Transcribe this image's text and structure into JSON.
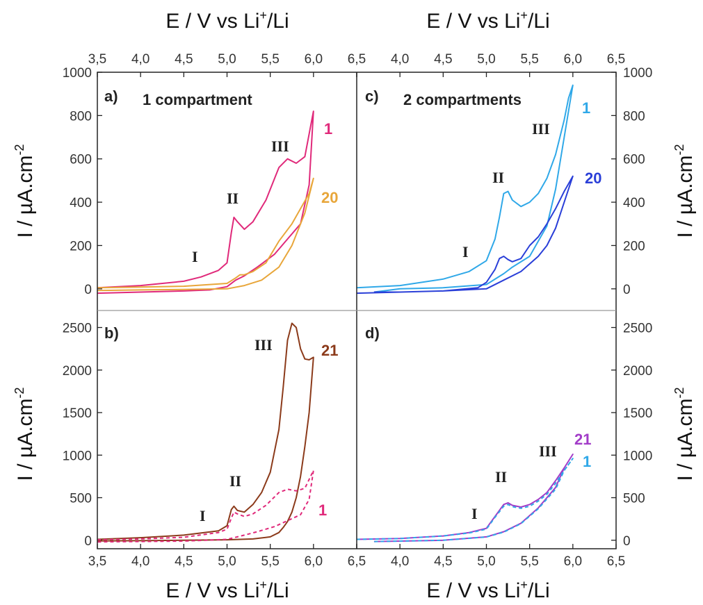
{
  "figure": {
    "x_axis_title_prefix": "E / V vs Li",
    "x_axis_title_sup": "+",
    "x_axis_title_suffix": "/Li",
    "y_axis_title_prefix": "I / µA.cm",
    "y_axis_title_sup": "-2",
    "x_tick_labels": [
      "3,5",
      "4,0",
      "4,5",
      "5,0",
      "5,5",
      "6,0",
      "6,5"
    ],
    "y_tick_labels_top": [
      "0",
      "200",
      "400",
      "600",
      "800",
      "1000"
    ],
    "y_tick_labels_bottom": [
      "0",
      "500",
      "1000",
      "1500",
      "2000",
      "2500"
    ]
  },
  "chart_data": [
    {
      "id": "a",
      "panel_label": "a)",
      "condition": "1 compartment",
      "type": "line",
      "xlabel": "E / V vs Li+/Li",
      "ylabel": "I / µA.cm-2",
      "xlim": [
        3.5,
        6.5
      ],
      "ylim": [
        -100,
        1000
      ],
      "series": [
        {
          "cycle_label": "1",
          "color": "#E0297A",
          "dash": "solid",
          "x": [
            3.5,
            4.0,
            4.5,
            4.7,
            4.9,
            5.0,
            5.05,
            5.08,
            5.12,
            5.2,
            5.3,
            5.45,
            5.6,
            5.7,
            5.8,
            5.9,
            6.0,
            5.95,
            5.85,
            5.7,
            5.55,
            5.35,
            5.2,
            5.1,
            5.0,
            4.8,
            4.5,
            4.0,
            3.5
          ],
          "y": [
            5,
            15,
            35,
            55,
            85,
            120,
            260,
            330,
            310,
            275,
            310,
            410,
            560,
            600,
            580,
            610,
            820,
            480,
            300,
            230,
            160,
            100,
            60,
            40,
            10,
            -5,
            -10,
            -15,
            -20
          ]
        },
        {
          "cycle_label": "20",
          "color": "#E8A63A",
          "dash": "solid",
          "x": [
            3.5,
            4.0,
            4.5,
            5.0,
            5.1,
            5.15,
            5.2,
            5.3,
            5.45,
            5.6,
            5.75,
            5.85,
            5.95,
            6.0,
            5.9,
            5.75,
            5.6,
            5.4,
            5.2,
            5.0,
            4.5,
            4.0,
            3.5
          ],
          "y": [
            5,
            8,
            12,
            25,
            50,
            65,
            65,
            80,
            120,
            220,
            300,
            370,
            440,
            510,
            350,
            200,
            100,
            40,
            15,
            0,
            -3,
            -5,
            -8
          ]
        }
      ],
      "annotations": [
        "I",
        "II",
        "III"
      ]
    },
    {
      "id": "b",
      "panel_label": "b)",
      "condition": "",
      "type": "line",
      "xlabel": "E / V vs Li+/Li",
      "ylabel": "I / µA.cm-2",
      "xlim": [
        3.5,
        6.5
      ],
      "ylim": [
        -100,
        2700
      ],
      "series": [
        {
          "cycle_label": "21",
          "color": "#8B3A1A",
          "dash": "solid",
          "x": [
            3.5,
            4.0,
            4.5,
            4.9,
            5.0,
            5.05,
            5.08,
            5.12,
            5.2,
            5.3,
            5.4,
            5.5,
            5.6,
            5.65,
            5.7,
            5.75,
            5.8,
            5.85,
            5.9,
            5.95,
            6.0,
            5.95,
            5.9,
            5.85,
            5.8,
            5.75,
            5.7,
            5.65,
            5.6,
            5.5,
            5.3,
            5.0,
            4.5,
            4.0,
            3.5
          ],
          "y": [
            10,
            30,
            60,
            110,
            170,
            360,
            400,
            350,
            330,
            420,
            560,
            800,
            1300,
            1800,
            2350,
            2550,
            2500,
            2250,
            2130,
            2120,
            2150,
            1500,
            1100,
            750,
            500,
            330,
            220,
            150,
            90,
            40,
            15,
            5,
            0,
            -5,
            -8
          ]
        },
        {
          "cycle_label": "1",
          "color": "#E0297A",
          "dash": "dashed",
          "x": [
            3.5,
            4.0,
            4.5,
            4.9,
            5.0,
            5.05,
            5.08,
            5.12,
            5.2,
            5.3,
            5.45,
            5.6,
            5.7,
            5.8,
            5.9,
            6.0,
            5.95,
            5.85,
            5.7,
            5.55,
            5.35,
            5.2,
            5.0,
            4.5,
            4.0,
            3.5
          ],
          "y": [
            5,
            15,
            35,
            90,
            130,
            260,
            330,
            310,
            280,
            310,
            410,
            560,
            600,
            580,
            610,
            820,
            480,
            300,
            230,
            160,
            100,
            60,
            10,
            -10,
            -15,
            -20
          ]
        }
      ],
      "annotations": [
        "I",
        "II",
        "III"
      ]
    },
    {
      "id": "c",
      "panel_label": "c)",
      "condition": "2 compartments",
      "type": "line",
      "xlabel": "E / V vs Li+/Li",
      "ylabel": "I / µA.cm-2",
      "xlim": [
        3.5,
        6.5
      ],
      "ylim": [
        -100,
        1000
      ],
      "series": [
        {
          "cycle_label": "1",
          "color": "#2FA8E8",
          "dash": "solid",
          "x": [
            3.5,
            4.0,
            4.5,
            4.8,
            5.0,
            5.1,
            5.15,
            5.2,
            5.25,
            5.3,
            5.4,
            5.5,
            5.6,
            5.7,
            5.8,
            5.9,
            5.95,
            6.0,
            5.9,
            5.8,
            5.7,
            5.5,
            5.3,
            5.2,
            5.0,
            4.5,
            4.0,
            3.7
          ],
          "y": [
            5,
            15,
            45,
            80,
            130,
            230,
            330,
            440,
            450,
            410,
            380,
            400,
            440,
            510,
            620,
            780,
            880,
            940,
            700,
            460,
            290,
            150,
            100,
            70,
            20,
            5,
            0,
            -15
          ]
        },
        {
          "cycle_label": "20",
          "color": "#2A3FD8",
          "dash": "solid",
          "x": [
            3.5,
            4.0,
            4.5,
            4.9,
            5.0,
            5.1,
            5.15,
            5.2,
            5.25,
            5.3,
            5.4,
            5.5,
            5.6,
            5.7,
            5.8,
            5.9,
            6.0,
            5.9,
            5.8,
            5.7,
            5.6,
            5.4,
            5.2,
            5.0,
            4.5,
            4.0,
            3.7
          ],
          "y": [
            -20,
            -15,
            -10,
            5,
            30,
            90,
            140,
            150,
            135,
            125,
            140,
            200,
            240,
            300,
            370,
            450,
            520,
            400,
            280,
            200,
            150,
            80,
            40,
            0,
            -10,
            -15,
            -15
          ]
        }
      ],
      "annotations": [
        "I",
        "II",
        "III"
      ]
    },
    {
      "id": "d",
      "panel_label": "d)",
      "condition": "",
      "type": "line",
      "xlabel": "E / V vs Li+/Li",
      "ylabel": "I / µA.cm-2",
      "xlim": [
        3.5,
        6.5
      ],
      "ylim": [
        -100,
        2700
      ],
      "series": [
        {
          "cycle_label": "21",
          "color": "#A23CC8",
          "dash": "solid",
          "x": [
            3.5,
            4.0,
            4.5,
            4.8,
            5.0,
            5.1,
            5.2,
            5.25,
            5.3,
            5.4,
            5.5,
            5.6,
            5.7,
            5.8,
            5.9,
            6.0,
            5.9,
            5.8,
            5.6,
            5.4,
            5.2,
            5.0,
            4.5,
            4.0,
            3.7
          ],
          "y": [
            10,
            20,
            50,
            90,
            140,
            280,
            420,
            440,
            410,
            390,
            420,
            480,
            560,
            700,
            850,
            1010,
            850,
            620,
            380,
            200,
            100,
            40,
            0,
            -10,
            -15
          ]
        },
        {
          "cycle_label": "1",
          "color": "#2FA8E8",
          "dash": "dashed",
          "x": [
            3.5,
            4.0,
            4.5,
            4.8,
            5.0,
            5.1,
            5.2,
            5.25,
            5.3,
            5.4,
            5.5,
            5.6,
            5.7,
            5.8,
            5.9,
            6.0,
            5.9,
            5.8,
            5.6,
            5.4,
            5.2,
            5.0,
            4.5,
            4.0,
            3.7
          ],
          "y": [
            10,
            20,
            50,
            85,
            130,
            270,
            400,
            420,
            395,
            375,
            400,
            460,
            540,
            670,
            820,
            960,
            820,
            600,
            370,
            195,
            95,
            38,
            0,
            -10,
            -15
          ]
        }
      ],
      "annotations": [
        "I",
        "II",
        "III"
      ]
    }
  ],
  "layout_text": {
    "annot_a": [
      "I",
      "II",
      "III"
    ],
    "annot_b": [
      "I",
      "II",
      "III"
    ],
    "annot_c": [
      "I",
      "II",
      "III"
    ],
    "annot_d": [
      "I",
      "II",
      "III"
    ]
  }
}
